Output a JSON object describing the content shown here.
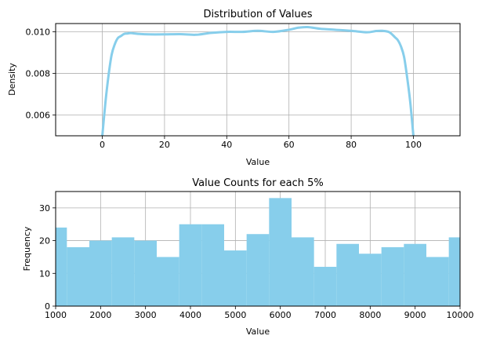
{
  "chart_data": [
    {
      "type": "line",
      "title": "Distribution of Values",
      "xlabel": "Value",
      "ylabel": "Density",
      "xlim": [
        -15,
        115
      ],
      "ylim": [
        0.005,
        0.0104
      ],
      "xticks": [
        0,
        20,
        40,
        60,
        80,
        100
      ],
      "xtick_labels": [
        "0",
        "20",
        "40",
        "60",
        "80",
        "100"
      ],
      "yticks": [
        0.006,
        0.008,
        0.01
      ],
      "ytick_labels": [
        "0.006",
        "0.008",
        "0.010"
      ],
      "grid": true,
      "color": "#87ceeb",
      "series": [
        {
          "x": [
            0,
            1,
            2,
            3,
            4,
            5,
            6,
            7,
            8,
            9,
            10,
            12,
            15,
            20,
            25,
            30,
            35,
            40,
            45,
            50,
            55,
            60,
            63,
            66,
            70,
            75,
            80,
            85,
            88,
            90,
            92,
            93,
            94,
            95,
            96,
            97,
            98,
            99,
            100
          ],
          "y": [
            0.005,
            0.0066,
            0.0079,
            0.0089,
            0.0094,
            0.0097,
            0.0098,
            0.0099,
            0.00992,
            0.00994,
            0.00993,
            0.0099,
            0.00988,
            0.00988,
            0.00989,
            0.00986,
            0.00995,
            0.01,
            0.01,
            0.01005,
            0.01,
            0.0101,
            0.0102,
            0.01023,
            0.01015,
            0.0101,
            0.01005,
            0.00998,
            0.01004,
            0.01005,
            0.01,
            0.0099,
            0.00975,
            0.0096,
            0.0093,
            0.0088,
            0.0078,
            0.0066,
            0.005
          ]
        }
      ]
    },
    {
      "type": "bar",
      "title": "Value Counts for each 5%",
      "xlabel": "Value",
      "ylabel": "Frequency",
      "xlim": [
        1000,
        10000
      ],
      "ylim": [
        0,
        35
      ],
      "xticks": [
        1000,
        2000,
        3000,
        4000,
        5000,
        6000,
        7000,
        8000,
        9000,
        10000
      ],
      "xtick_labels": [
        "1000",
        "2000",
        "3000",
        "4000",
        "5000",
        "6000",
        "7000",
        "8000",
        "9000",
        "10000"
      ],
      "yticks": [
        0,
        10,
        20,
        30
      ],
      "ytick_labels": [
        "0",
        "10",
        "20",
        "30"
      ],
      "grid": true,
      "color": "#87ceeb",
      "bin_edges": [
        1000,
        1250,
        1750,
        2250,
        2750,
        3250,
        3750,
        4250,
        4750,
        5250,
        5750,
        6250,
        6750,
        7250,
        7750,
        8250,
        8750,
        9250,
        9750,
        10000
      ],
      "values": [
        24,
        18,
        20,
        21,
        20,
        15,
        25,
        25,
        17,
        22,
        33,
        21,
        12,
        19,
        16,
        18,
        19,
        15,
        21
      ]
    }
  ]
}
